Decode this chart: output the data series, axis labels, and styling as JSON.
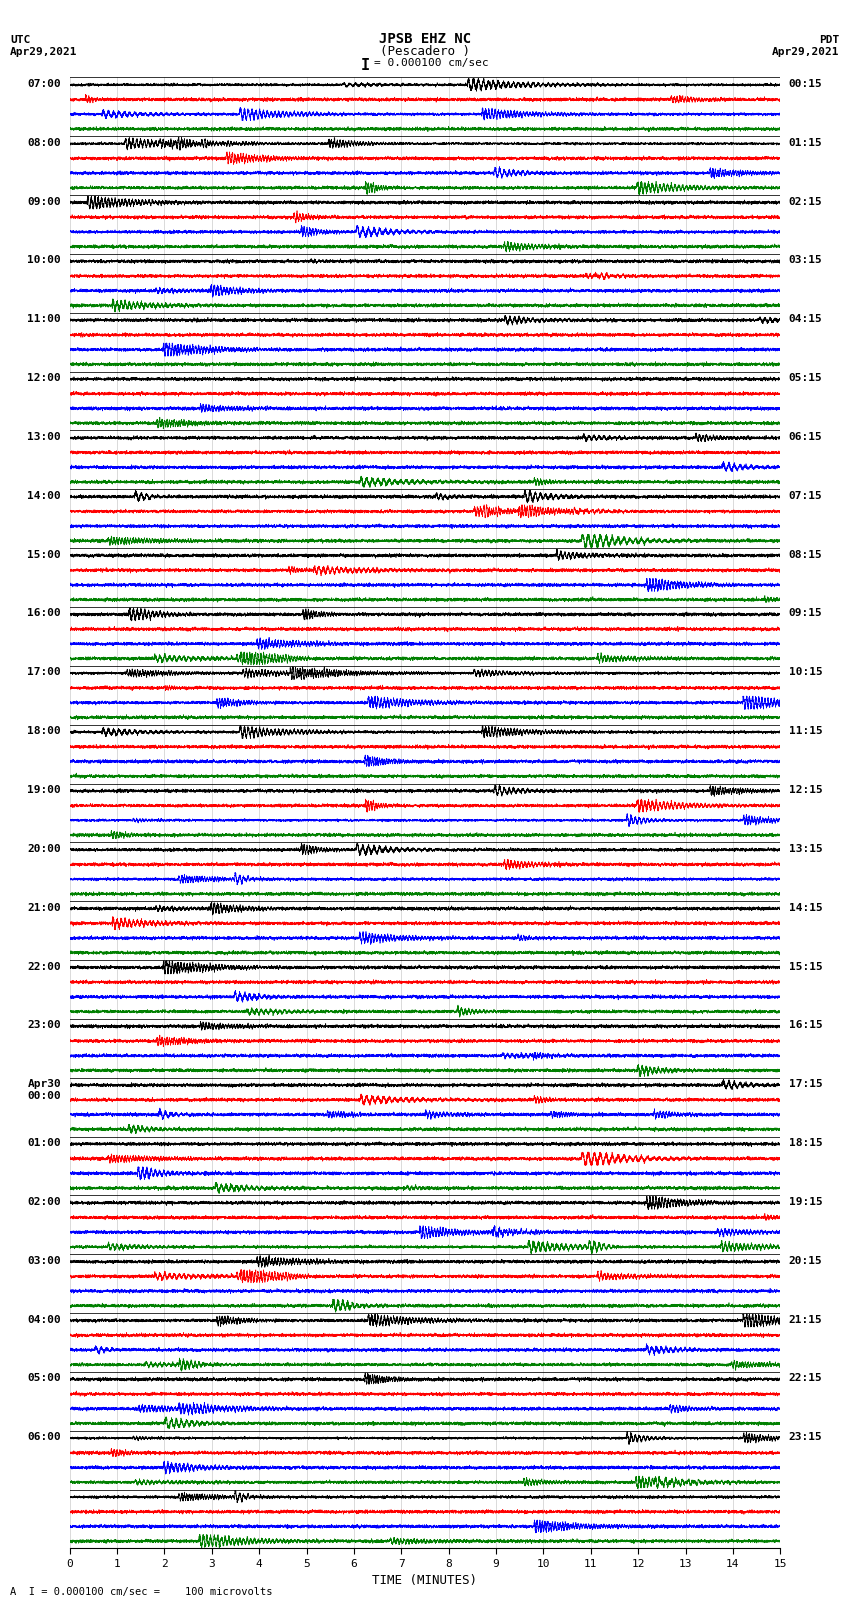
{
  "title_line1": "JPSB EHZ NC",
  "title_line2": "(Pescadero )",
  "scale_text": "= 0.000100 cm/sec",
  "bottom_text": "A  I = 0.000100 cm/sec =    100 microvolts",
  "utc_label": "UTC",
  "utc_date": "Apr29,2021",
  "pdt_label": "PDT",
  "pdt_date": "Apr29,2021",
  "xlabel": "TIME (MINUTES)",
  "background_color": "#ffffff",
  "trace_colors": [
    "black",
    "red",
    "blue",
    "green"
  ],
  "left_labels": [
    [
      "07:00"
    ],
    [
      "08:00"
    ],
    [
      "09:00"
    ],
    [
      "10:00"
    ],
    [
      "11:00"
    ],
    [
      "12:00"
    ],
    [
      "13:00"
    ],
    [
      "14:00"
    ],
    [
      "15:00"
    ],
    [
      "16:00"
    ],
    [
      "17:00"
    ],
    [
      "18:00"
    ],
    [
      "19:00"
    ],
    [
      "20:00"
    ],
    [
      "21:00"
    ],
    [
      "22:00"
    ],
    [
      "23:00"
    ],
    [
      "Apr30",
      "00:00"
    ],
    [
      "01:00"
    ],
    [
      "02:00"
    ],
    [
      "03:00"
    ],
    [
      "04:00"
    ],
    [
      "05:00"
    ],
    [
      "06:00"
    ],
    [
      ""
    ]
  ],
  "right_labels": [
    "00:15",
    "01:15",
    "02:15",
    "03:15",
    "04:15",
    "05:15",
    "06:15",
    "07:15",
    "08:15",
    "09:15",
    "10:15",
    "11:15",
    "12:15",
    "13:15",
    "14:15",
    "15:15",
    "16:15",
    "17:15",
    "18:15",
    "19:15",
    "20:15",
    "21:15",
    "22:15",
    "23:15",
    ""
  ],
  "num_groups": 25,
  "traces_per_group": 4,
  "xmin": 0,
  "xmax": 15,
  "seed": 42
}
